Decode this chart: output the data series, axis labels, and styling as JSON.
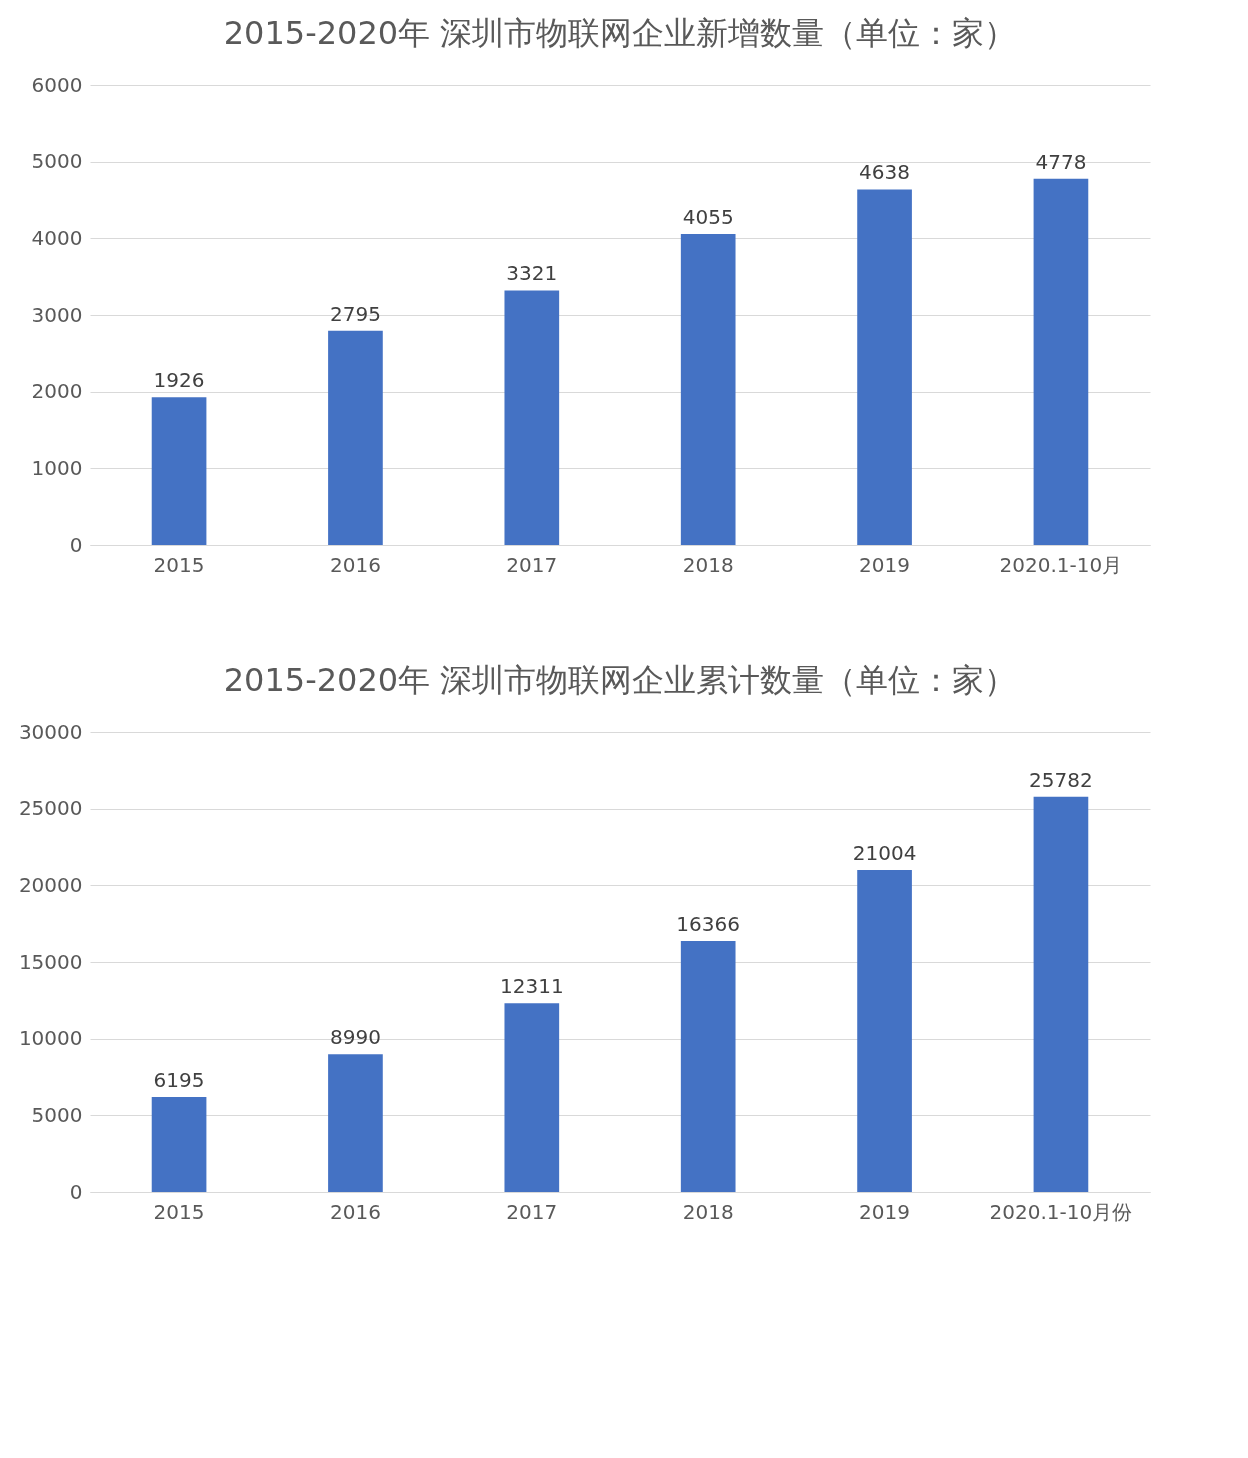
{
  "chart_data": [
    {
      "type": "bar",
      "title": "2015-2020年  深圳市物联网企业新增数量（单位：家）",
      "categories": [
        "2015",
        "2016",
        "2017",
        "2018",
        "2019",
        "2020.1-10月"
      ],
      "values": [
        1926,
        2795,
        3321,
        4055,
        4638,
        4778
      ],
      "color": "#4472c4",
      "ylim": [
        0,
        6000
      ],
      "yticks": [
        0,
        1000,
        2000,
        3000,
        4000,
        5000,
        6000
      ],
      "grid": "y",
      "data_labels": true
    },
    {
      "type": "bar",
      "title": "2015-2020年  深圳市物联网企业累计数量（单位：家）",
      "categories": [
        "2015",
        "2016",
        "2017",
        "2018",
        "2019",
        "2020.1-10月份"
      ],
      "values": [
        6195,
        8990,
        12311,
        16366,
        21004,
        25782
      ],
      "color": "#4472c4",
      "ylim": [
        0,
        30000
      ],
      "yticks": [
        0,
        5000,
        10000,
        15000,
        20000,
        25000,
        30000
      ],
      "grid": "y",
      "data_labels": true
    }
  ]
}
